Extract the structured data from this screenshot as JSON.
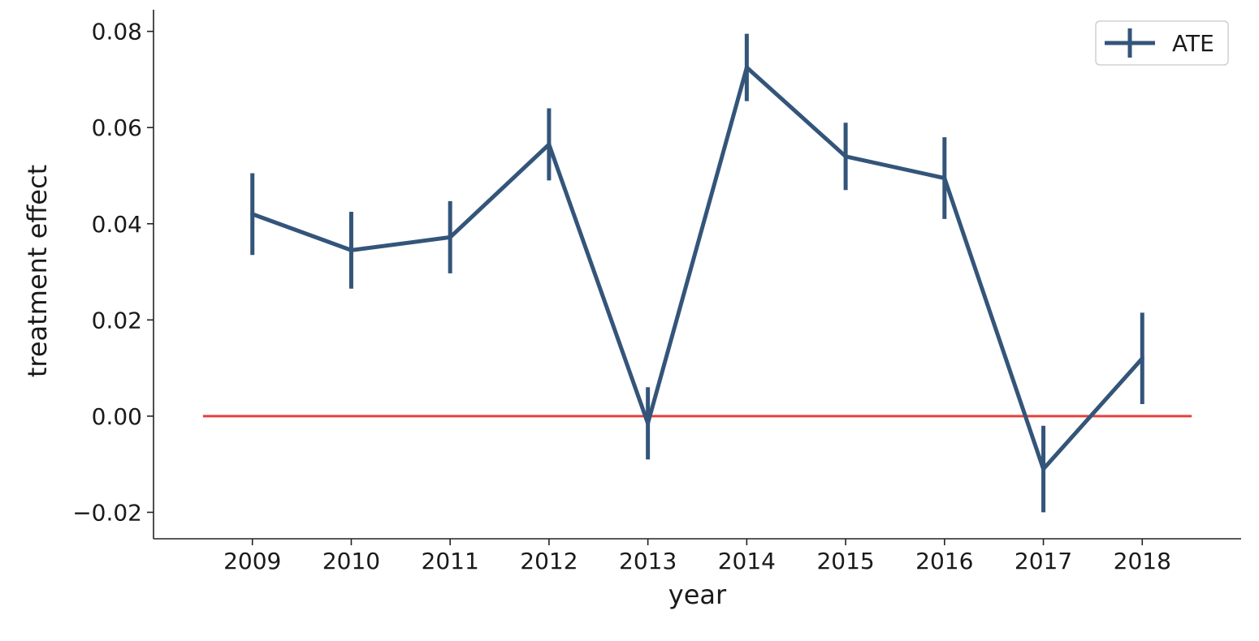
{
  "chart_data": {
    "type": "line",
    "title": "",
    "xlabel": "year",
    "ylabel": "treatment effect",
    "x": [
      2009,
      2010,
      2011,
      2012,
      2013,
      2014,
      2015,
      2016,
      2017,
      2018
    ],
    "xticks": [
      "2009",
      "2010",
      "2011",
      "2012",
      "2013",
      "2014",
      "2015",
      "2016",
      "2017",
      "2018"
    ],
    "xlim": [
      2008,
      2019
    ],
    "ylim": [
      -0.0255,
      0.0845
    ],
    "yticks": [
      -0.02,
      0.0,
      0.02,
      0.04,
      0.06,
      0.08
    ],
    "ytick_labels": [
      "−0.02",
      "0.00",
      "0.02",
      "0.04",
      "0.06",
      "0.08"
    ],
    "grid": false,
    "legend_position": "top-right",
    "series": [
      {
        "name": "ATE",
        "color": "#34557a",
        "values": [
          0.042,
          0.0345,
          0.0372,
          0.0565,
          -0.0015,
          0.0725,
          0.054,
          0.0495,
          -0.011,
          0.012
        ],
        "error": [
          0.0085,
          0.008,
          0.0075,
          0.0075,
          0.0075,
          0.007,
          0.007,
          0.0085,
          0.009,
          0.0095
        ]
      }
    ],
    "reference_line": {
      "y": 0.0,
      "color": "#e8403a",
      "x_start": 2008.5,
      "x_end": 2018.5
    }
  }
}
